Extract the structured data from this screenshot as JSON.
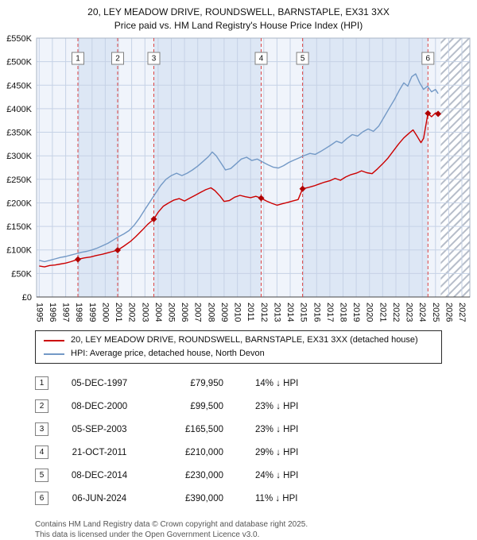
{
  "chart_data": {
    "type": "line",
    "title": "20, LEY MEADOW DRIVE, ROUNDSWELL, BARNSTAPLE, EX31 3XX",
    "subtitle": "Price paid vs. HM Land Registry's House Price Index (HPI)",
    "xlim": [
      1994.8,
      2027.6
    ],
    "ylim": [
      0,
      550000
    ],
    "grid": true,
    "legend_position": "bottom",
    "x_ticks": [
      1995,
      1996,
      1997,
      1998,
      1999,
      2000,
      2001,
      2002,
      2003,
      2004,
      2005,
      2006,
      2007,
      2008,
      2009,
      2010,
      2011,
      2012,
      2013,
      2014,
      2015,
      2016,
      2017,
      2018,
      2019,
      2020,
      2021,
      2022,
      2023,
      2024,
      2025,
      2026,
      2027
    ],
    "y_ticks": [
      {
        "v": 0,
        "label": "£0"
      },
      {
        "v": 50000,
        "label": "£50K"
      },
      {
        "v": 100000,
        "label": "£100K"
      },
      {
        "v": 150000,
        "label": "£150K"
      },
      {
        "v": 200000,
        "label": "£200K"
      },
      {
        "v": 250000,
        "label": "£250K"
      },
      {
        "v": 300000,
        "label": "£300K"
      },
      {
        "v": 350000,
        "label": "£350K"
      },
      {
        "v": 400000,
        "label": "£400K"
      },
      {
        "v": 450000,
        "label": "£450K"
      },
      {
        "v": 500000,
        "label": "£500K"
      },
      {
        "v": 550000,
        "label": "£550K"
      }
    ],
    "future_start": 2025.4,
    "colors": {
      "red": "#cc0000",
      "blue": "#7399c6",
      "band_light": "#f0f4fb",
      "band_dark": "#dde7f5",
      "grid": "#c6d2e6",
      "border": "#a9b4c6",
      "sale_line": "#dd4444",
      "marker": "#b00000",
      "hatch": "#b6bdc9",
      "axis": "#444444"
    },
    "series": [
      {
        "name": "20, LEY MEADOW DRIVE, ROUNDSWELL, BARNSTAPLE, EX31 3XX (detached house)",
        "color": "#cc0000",
        "x": [
          1995.0,
          1995.4,
          1995.8,
          1996.2,
          1996.6,
          1997.0,
          1997.4,
          1997.93,
          1998.4,
          1998.9,
          1999.3,
          1999.8,
          2000.2,
          2000.6,
          2000.94,
          2001.4,
          2001.9,
          2002.3,
          2002.8,
          2003.2,
          2003.68,
          2004.0,
          2004.4,
          2004.8,
          2005.2,
          2005.6,
          2006.0,
          2006.4,
          2006.8,
          2007.2,
          2007.6,
          2008.0,
          2008.3,
          2008.7,
          2009.0,
          2009.4,
          2009.8,
          2010.2,
          2010.6,
          2011.0,
          2011.4,
          2011.8,
          2012.2,
          2012.6,
          2013.0,
          2013.4,
          2013.8,
          2014.2,
          2014.6,
          2014.94,
          2015.4,
          2015.8,
          2016.2,
          2016.6,
          2017.0,
          2017.4,
          2017.8,
          2018.2,
          2018.6,
          2019.0,
          2019.4,
          2019.8,
          2020.2,
          2020.6,
          2021.0,
          2021.4,
          2021.8,
          2022.2,
          2022.6,
          2023.0,
          2023.3,
          2023.6,
          2023.9,
          2024.1,
          2024.43,
          2024.7,
          2025.0,
          2025.2
        ],
        "y": [
          66000,
          64000,
          67000,
          68000,
          70000,
          72000,
          75000,
          79950,
          83000,
          85000,
          88000,
          91000,
          94000,
          97000,
          99500,
          108000,
          118000,
          128000,
          142000,
          154000,
          165500,
          180000,
          193000,
          200000,
          206000,
          209000,
          204000,
          210000,
          216000,
          222000,
          228000,
          232000,
          226000,
          214000,
          203000,
          205000,
          212000,
          216000,
          213000,
          211000,
          214000,
          210000,
          204000,
          199000,
          195000,
          198000,
          201000,
          204000,
          207000,
          230000,
          233000,
          236000,
          240000,
          244000,
          247000,
          252000,
          248000,
          255000,
          260000,
          263000,
          268000,
          264000,
          262000,
          272000,
          283000,
          295000,
          310000,
          325000,
          338000,
          348000,
          355000,
          342000,
          328000,
          337000,
          390000,
          383000,
          391000,
          389000
        ]
      },
      {
        "name": "HPI: Average price, detached house, North Devon",
        "color": "#7399c6",
        "x": [
          1995.0,
          1995.4,
          1995.8,
          1996.2,
          1996.6,
          1997.0,
          1997.4,
          1997.8,
          1998.2,
          1998.6,
          1999.0,
          1999.4,
          1999.8,
          2000.2,
          2000.6,
          2001.0,
          2001.4,
          2001.8,
          2002.2,
          2002.6,
          2003.0,
          2003.4,
          2003.8,
          2004.2,
          2004.6,
          2005.0,
          2005.4,
          2005.8,
          2006.2,
          2006.6,
          2007.0,
          2007.4,
          2007.8,
          2008.1,
          2008.4,
          2008.8,
          2009.1,
          2009.5,
          2009.9,
          2010.3,
          2010.7,
          2011.1,
          2011.5,
          2011.9,
          2012.3,
          2012.7,
          2013.1,
          2013.5,
          2013.9,
          2014.3,
          2014.7,
          2015.1,
          2015.5,
          2015.9,
          2016.3,
          2016.7,
          2017.1,
          2017.5,
          2017.9,
          2018.3,
          2018.7,
          2019.1,
          2019.5,
          2019.9,
          2020.3,
          2020.7,
          2021.1,
          2021.5,
          2021.9,
          2022.3,
          2022.6,
          2022.9,
          2023.2,
          2023.5,
          2023.8,
          2024.1,
          2024.4,
          2024.7,
          2025.0,
          2025.2
        ],
        "y": [
          78000,
          75000,
          78000,
          81000,
          84000,
          86000,
          89000,
          92000,
          95000,
          97000,
          100000,
          104000,
          109000,
          114000,
          121000,
          128000,
          134000,
          141000,
          153000,
          168000,
          186000,
          203000,
          220000,
          237000,
          250000,
          258000,
          263000,
          258000,
          263000,
          270000,
          278000,
          288000,
          298000,
          308000,
          300000,
          283000,
          270000,
          273000,
          283000,
          293000,
          297000,
          290000,
          293000,
          287000,
          281000,
          276000,
          274000,
          279000,
          286000,
          291000,
          296000,
          301000,
          305000,
          303000,
          309000,
          316000,
          323000,
          331000,
          327000,
          337000,
          345000,
          342000,
          351000,
          357000,
          352000,
          363000,
          382000,
          401000,
          420000,
          441000,
          455000,
          448000,
          468000,
          474000,
          455000,
          441000,
          448000,
          436000,
          441000,
          432000
        ]
      }
    ],
    "sales": [
      {
        "num": "1",
        "x": 1997.93,
        "y": 79950
      },
      {
        "num": "2",
        "x": 2000.94,
        "y": 99500
      },
      {
        "num": "3",
        "x": 2003.68,
        "y": 165500
      },
      {
        "num": "4",
        "x": 2011.8,
        "y": 210000
      },
      {
        "num": "5",
        "x": 2014.94,
        "y": 230000
      },
      {
        "num": "6",
        "x": 2024.43,
        "y": 390000
      }
    ]
  },
  "legend": {
    "series": [
      {
        "label": "20, LEY MEADOW DRIVE, ROUNDSWELL, BARNSTAPLE, EX31 3XX (detached house)",
        "color": "#cc0000"
      },
      {
        "label": "HPI: Average price, detached house, North Devon",
        "color": "#7399c6"
      }
    ]
  },
  "transactions": [
    {
      "num": "1",
      "date": "05-DEC-1997",
      "price": "£79,950",
      "hpi": "14% ↓ HPI"
    },
    {
      "num": "2",
      "date": "08-DEC-2000",
      "price": "£99,500",
      "hpi": "23% ↓ HPI"
    },
    {
      "num": "3",
      "date": "05-SEP-2003",
      "price": "£165,500",
      "hpi": "23% ↓ HPI"
    },
    {
      "num": "4",
      "date": "21-OCT-2011",
      "price": "£210,000",
      "hpi": "29% ↓ HPI"
    },
    {
      "num": "5",
      "date": "08-DEC-2014",
      "price": "£230,000",
      "hpi": "24% ↓ HPI"
    },
    {
      "num": "6",
      "date": "06-JUN-2024",
      "price": "£390,000",
      "hpi": "11% ↓ HPI"
    }
  ],
  "footer": {
    "line1": "Contains HM Land Registry data © Crown copyright and database right 2025.",
    "line2": "This data is licensed under the Open Government Licence v3.0."
  }
}
